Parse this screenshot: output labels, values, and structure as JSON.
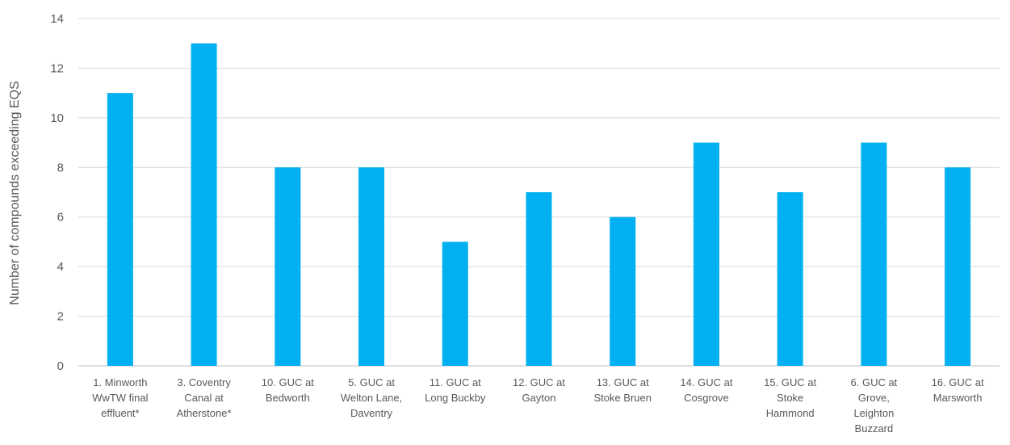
{
  "chart_data": {
    "type": "bar",
    "title": "",
    "xlabel": "",
    "ylabel": "Number of compounds exceeding EQS",
    "ylim": [
      0,
      14
    ],
    "yticks": [
      0,
      2,
      4,
      6,
      8,
      10,
      12,
      14
    ],
    "grid": true,
    "legend": "none",
    "bar_color": "#00b0f0",
    "categories": [
      "1. Minworth WwTW final effluent*",
      "3. Coventry Canal at Atherstone*",
      "10. GUC at Bedworth",
      "5. GUC at Welton Lane, Daventry",
      "11. GUC at Long Buckby",
      "12. GUC at Gayton",
      "13. GUC at Stoke Bruen",
      "14. GUC at Cosgrove",
      "15. GUC at Stoke Hammond",
      "6. GUC at Grove, Leighton Buzzard",
      "16. GUC at Marsworth"
    ],
    "category_lines": [
      [
        "1. Minworth",
        "WwTW final",
        "effluent*"
      ],
      [
        "3. Coventry",
        "Canal at",
        "Atherstone*"
      ],
      [
        "10. GUC at",
        "Bedworth"
      ],
      [
        "5. GUC at",
        "Welton Lane,",
        "Daventry"
      ],
      [
        "11. GUC at",
        "Long Buckby"
      ],
      [
        "12. GUC at",
        "Gayton"
      ],
      [
        "13. GUC at",
        "Stoke Bruen"
      ],
      [
        "14. GUC at",
        "Cosgrove"
      ],
      [
        "15. GUC at",
        "Stoke",
        "Hammond"
      ],
      [
        "6. GUC at",
        "Grove,",
        "Leighton",
        "Buzzard"
      ],
      [
        "16. GUC at",
        "Marsworth"
      ]
    ],
    "values": [
      11,
      13,
      8,
      8,
      5,
      7,
      6,
      9,
      7,
      9,
      8
    ]
  }
}
